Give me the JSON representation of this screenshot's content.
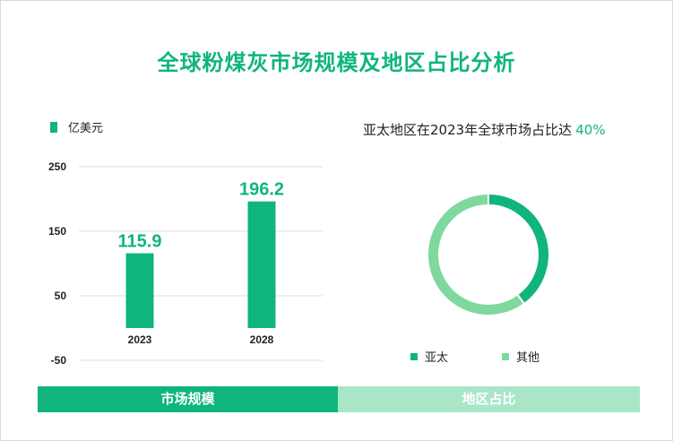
{
  "title": "全球粉煤灰市场规模及地区占比分析",
  "colors": {
    "primary": "#10b57c",
    "light": "#7fd89e",
    "tab_light": "#a9e6c8"
  },
  "left_legend": {
    "label": "亿美元"
  },
  "right_header": {
    "text": "亚太地区在2023年全球市场占比达",
    "highlight": "40%"
  },
  "bottom_tabs": [
    {
      "label": "市场规模"
    },
    {
      "label": "地区占比"
    }
  ],
  "chart_data": [
    {
      "type": "bar",
      "categories": [
        "2023",
        "2028"
      ],
      "values": [
        115.9,
        196.2
      ],
      "data_labels": [
        "115.9",
        "196.2"
      ],
      "y_ticks": [
        250,
        150,
        50,
        -50
      ],
      "ylim": [
        -50,
        250
      ],
      "grid": true,
      "legend": {
        "name": "亿美元",
        "placement": "top-left"
      }
    },
    {
      "type": "pie",
      "donut": true,
      "labels": [
        "亚太",
        "其他"
      ],
      "values": [
        40,
        60
      ],
      "colors": [
        "#10b57c",
        "#7fd89e"
      ],
      "legend": {
        "placement": "bottom"
      }
    }
  ]
}
